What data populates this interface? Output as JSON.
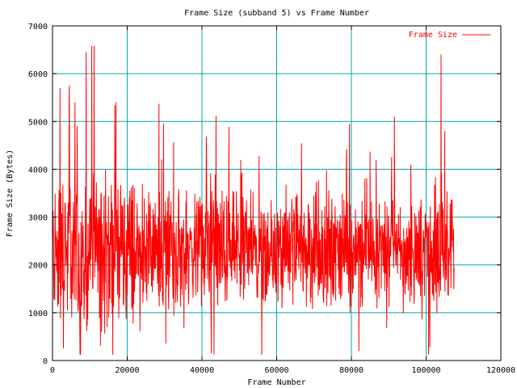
{
  "chart_data": {
    "type": "line",
    "title": "Frame Size (subband 5) vs Frame Number",
    "xlabel": "Frame Number",
    "ylabel": "Frame Size (Bytes)",
    "xlim": [
      0,
      120000
    ],
    "ylim": [
      0,
      7000
    ],
    "x_ticks": [
      0,
      20000,
      40000,
      60000,
      80000,
      100000,
      120000
    ],
    "y_ticks": [
      0,
      1000,
      2000,
      3000,
      4000,
      5000,
      6000,
      7000
    ],
    "x_tick_labels": [
      "0",
      "20000",
      "40000",
      "60000",
      "80000",
      "100000",
      "120000"
    ],
    "y_tick_labels": [
      "0",
      "1000",
      "2000",
      "3000",
      "4000",
      "5000",
      "6000",
      "7000"
    ],
    "grid": true,
    "legend_position": "top-right",
    "colors": {
      "series": "#ff0000",
      "grid": "#00aaaa",
      "axis": "#000000"
    },
    "series": [
      {
        "name": "Frame Size",
        "x_start": 0,
        "x_end": 107500,
        "approx_mean": 2300,
        "approx_min": 120,
        "approx_max": 6580,
        "peaks": [
          {
            "x": 9000,
            "y": 6450
          },
          {
            "x": 10500,
            "y": 6580
          },
          {
            "x": 104000,
            "y": 6400
          },
          {
            "x": 2000,
            "y": 5700
          },
          {
            "x": 4500,
            "y": 5750
          },
          {
            "x": 6000,
            "y": 5400
          },
          {
            "x": 17000,
            "y": 5400
          },
          {
            "x": 28500,
            "y": 5370
          },
          {
            "x": 79500,
            "y": 4950
          },
          {
            "x": 91500,
            "y": 5100
          },
          {
            "x": 105000,
            "y": 4800
          }
        ],
        "troughs": [
          {
            "x": 7500,
            "y": 120
          },
          {
            "x": 42500,
            "y": 150
          },
          {
            "x": 56000,
            "y": 120
          },
          {
            "x": 82000,
            "y": 200
          },
          {
            "x": 101000,
            "y": 280
          }
        ]
      }
    ]
  }
}
